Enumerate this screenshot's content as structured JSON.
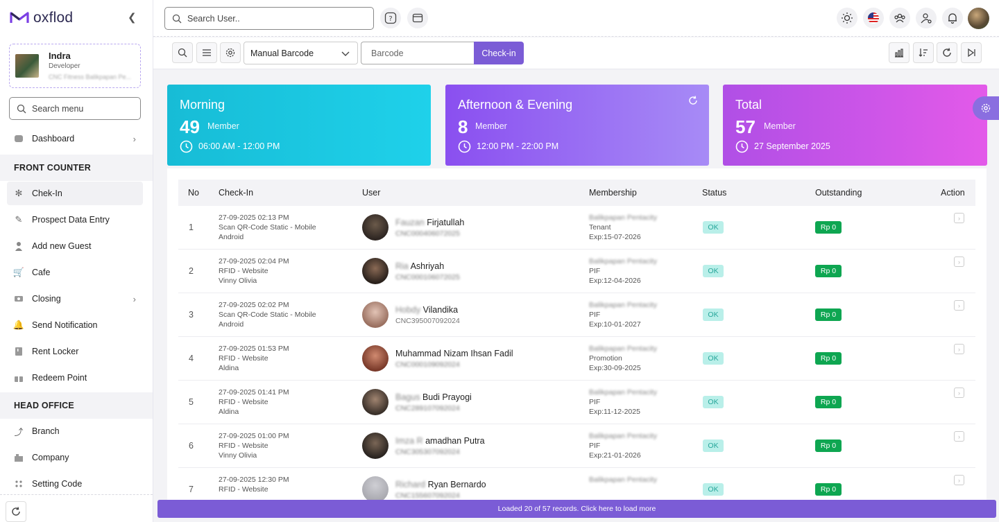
{
  "brand": {
    "name": "oxflod",
    "accent": "#7b5cd6"
  },
  "profile": {
    "name": "Indra",
    "role": "Developer",
    "branch": "CNC Fitness Balikpapan Pe..."
  },
  "sidebar": {
    "search_placeholder": "Search menu",
    "dashboard": "Dashboard",
    "front_counter": "FRONT COUNTER",
    "items": [
      "Chek-In",
      "Prospect Data Entry",
      "Add new Guest",
      "Cafe",
      "Closing",
      "Send Notification",
      "Rent Locker",
      "Redeem Point"
    ],
    "head_office": "HEAD OFFICE",
    "ho_items": [
      "Branch",
      "Company",
      "Setting Code"
    ]
  },
  "topbar": {
    "search_placeholder": "Search User.."
  },
  "toolbar": {
    "scan_mode": "Manual Barcode",
    "barcode_placeholder": "Barcode",
    "checkin_label": "Check-in"
  },
  "cards": [
    {
      "title": "Morning",
      "count": "49",
      "unit": "Member",
      "time": "06:00 AM - 12:00 PM"
    },
    {
      "title": "Afternoon & Evening",
      "count": "8",
      "unit": "Member",
      "time": "12:00 PM - 22:00 PM"
    },
    {
      "title": "Total",
      "count": "57",
      "unit": "Member",
      "time": "27 September 2025"
    }
  ],
  "table": {
    "headers": {
      "no": "No",
      "checkin": "Check-In",
      "user": "User",
      "membership": "Membership",
      "status": "Status",
      "outstanding": "Outstanding",
      "action": "Action"
    },
    "rows": [
      {
        "no": "1",
        "date": "27-09-2025 02:13 PM",
        "method": "Scan QR-Code Static - Mobile",
        "by": "Android",
        "first": "Fauzan",
        "last": "Firjatullah",
        "code": "CNC000406072025",
        "club": "Balikpapan Pentacity",
        "type": "Tenant",
        "exp": "Exp:15-07-2026",
        "status": "OK",
        "outstanding": "Rp 0"
      },
      {
        "no": "2",
        "date": "27-09-2025 02:04 PM",
        "method": "RFID - Website",
        "by": "Vinny Olivia",
        "first": "Ria",
        "last": "Ashriyah",
        "code": "CNC000106072025",
        "club": "Balikpapan Pentacity",
        "type": "PIF",
        "exp": "Exp:12-04-2026",
        "status": "OK",
        "outstanding": "Rp 0"
      },
      {
        "no": "3",
        "date": "27-09-2025 02:02 PM",
        "method": "Scan QR-Code Static - Mobile",
        "by": "Android",
        "first": "Hobdy",
        "last": "Vilandika",
        "code": "CNC395007092024",
        "club": "Balikpapan Pentacity",
        "type": "PIF",
        "exp": "Exp:10-01-2027",
        "status": "OK",
        "outstanding": "Rp 0"
      },
      {
        "no": "4",
        "date": "27-09-2025 01:53 PM",
        "method": "RFID - Website",
        "by": "Aldina",
        "first": "",
        "last": "Muhammad Nizam Ihsan Fadil",
        "code": "CNC000109092024",
        "club": "Balikpapan Pentacity",
        "type": "Promotion",
        "exp": "Exp:30-09-2025",
        "status": "OK",
        "outstanding": "Rp 0"
      },
      {
        "no": "5",
        "date": "27-09-2025 01:41 PM",
        "method": "RFID - Website",
        "by": "Aldina",
        "first": "Bagus",
        "last": "Budi Prayogi",
        "code": "CNC289107092024",
        "club": "Balikpapan Pentacity",
        "type": "PIF",
        "exp": "Exp:11-12-2025",
        "status": "OK",
        "outstanding": "Rp 0"
      },
      {
        "no": "6",
        "date": "27-09-2025 01:00 PM",
        "method": "RFID - Website",
        "by": "Vinny Olivia",
        "first": "Imza R",
        "last": "amadhan Putra",
        "code": "CNC305307092024",
        "club": "Balikpapan Pentacity",
        "type": "PIF",
        "exp": "Exp:21-01-2026",
        "status": "OK",
        "outstanding": "Rp 0"
      },
      {
        "no": "7",
        "date": "27-09-2025 12:30 PM",
        "method": "RFID - Website",
        "by": "",
        "first": "Richard",
        "last": "Ryan Bernardo",
        "code": "CNC155607092024",
        "club": "Balikpapan Pentacity",
        "type": "",
        "exp": "",
        "status": "OK",
        "outstanding": "Rp 0"
      }
    ]
  },
  "footer": {
    "load_more": "Loaded 20 of 57 records. Click here to load more"
  }
}
